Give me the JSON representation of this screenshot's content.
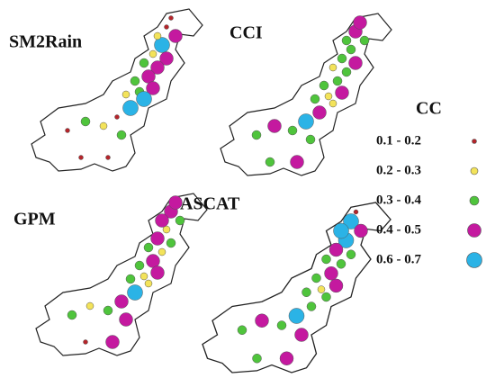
{
  "panels": [
    {
      "title": "SM2Rain"
    },
    {
      "title": "CCI"
    },
    {
      "title": "GPM"
    },
    {
      "title": "ASCAT"
    }
  ],
  "legend": {
    "title": "CC",
    "items": [
      {
        "label": "0.1 - 0.2",
        "color": "#b5242a"
      },
      {
        "label": "0.2 - 0.3",
        "color": "#f3e35a"
      },
      {
        "label": "0.3 - 0.4",
        "color": "#4fc43c"
      },
      {
        "label": "0.4 - 0.5",
        "color": "#c4199f"
      },
      {
        "label": "0.6 - 0.7",
        "color": "#2bb3e6"
      }
    ]
  }
}
